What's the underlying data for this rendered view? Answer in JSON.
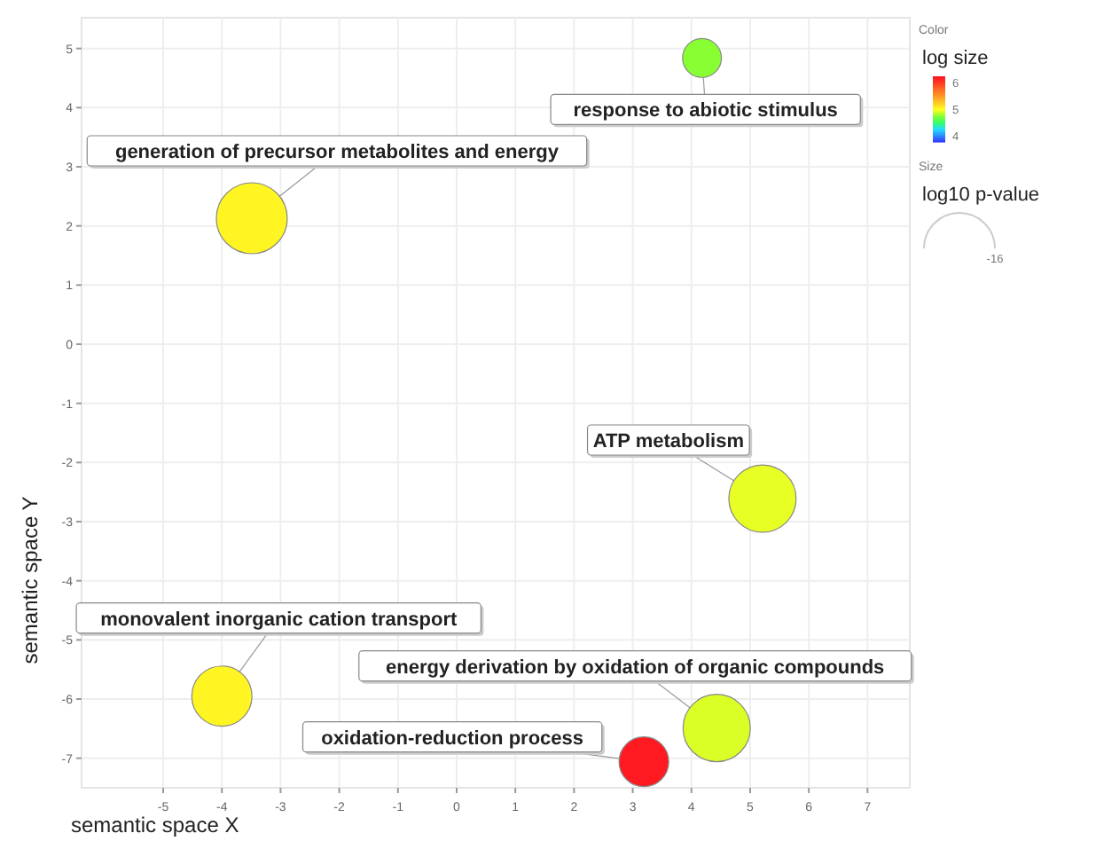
{
  "chart_data": {
    "type": "bubble",
    "xlabel": "semantic space X",
    "ylabel": "semantic space Y",
    "legend_title": "Color",
    "clabel": "log size",
    "x": [
      4.18,
      -3.49,
      5.21,
      -4.0,
      4.43,
      3.19
    ],
    "series": [
      {
        "values": [
          4.84,
          2.13,
          -2.61,
          -5.95,
          -6.49,
          -7.06
        ],
        "sizes": [
          0.3,
          1,
          0.9,
          0.72,
          0.9,
          0.49
        ],
        "cvalues": [
          4.75,
          5.05,
          4.95,
          5.05,
          4.92,
          6.2
        ]
      }
    ],
    "annotations": [
      {
        "text": "response to abiotic stimulus",
        "x": 4.18,
        "y": 4.84
      },
      {
        "text": "generation of precursor metabolites and energy",
        "x": -3.49,
        "y": 2.13
      },
      {
        "text": "ATP metabolism",
        "x": 5.21,
        "y": -2.61
      },
      {
        "text": "monovalent inorganic cation transport",
        "x": -4.0,
        "y": -5.95
      },
      {
        "text": "energy derivation by oxidation of organic compounds",
        "x": 4.43,
        "y": -6.49
      },
      {
        "text": "oxidation-reduction process",
        "x": 3.19,
        "y": -7.06
      },
      "Size",
      "log10 p-value",
      "-16"
    ],
    "xlim": [
      -6.39,
      7.72
    ],
    "ylim": [
      -7.5,
      5.52
    ],
    "xticks": [
      -5,
      -4,
      -3,
      -2,
      -1,
      0,
      1,
      2,
      3,
      4,
      5,
      6,
      7
    ],
    "yticks": [
      -7,
      -6,
      -5,
      -4,
      -3,
      -2,
      -1,
      0,
      1,
      2,
      3,
      4,
      5
    ],
    "clim": [
      3.75,
      6.25
    ],
    "cticks": [
      4,
      5,
      6
    ],
    "grid": true,
    "marker": "circle"
  }
}
